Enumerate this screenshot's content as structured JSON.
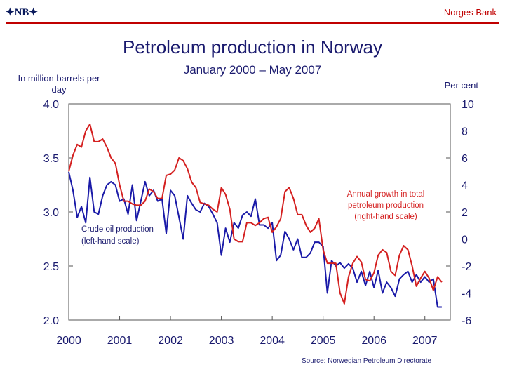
{
  "header": {
    "logo": "✦NB✦",
    "bank": "Norges Bank"
  },
  "colors": {
    "oil": "#1a1aa8",
    "petro": "#d42020",
    "axis": "#1a1a6e",
    "accent": "#c00000"
  },
  "chart_data": {
    "type": "line",
    "title": "Petroleum production in Norway",
    "subtitle": "January 2000 – May 2007",
    "left_axis_label": "In million barrels per day",
    "right_axis_label": "Per cent",
    "source": "Source: Norwegian Petroleum Directorate",
    "x_range": [
      2000,
      2007.5
    ],
    "x_ticks": [
      "2000",
      "2001",
      "2002",
      "2003",
      "2004",
      "2005",
      "2006",
      "2007"
    ],
    "left_axis": {
      "range": [
        2.0,
        4.0
      ],
      "ticks": [
        "2.0",
        "2.5",
        "3.0",
        "3.5",
        "4.0"
      ]
    },
    "right_axis": {
      "range": [
        -6,
        10
      ],
      "ticks": [
        "-6",
        "-4",
        "-2",
        "0",
        "2",
        "4",
        "6",
        "8",
        "10"
      ]
    },
    "series": [
      {
        "name": "Crude oil production",
        "label": [
          "Crude oil production",
          "(left-hand scale)"
        ],
        "axis": "left",
        "x": [
          2000.0,
          2000.083,
          2000.167,
          2000.25,
          2000.333,
          2000.417,
          2000.5,
          2000.583,
          2000.667,
          2000.75,
          2000.833,
          2000.917,
          2001.0,
          2001.083,
          2001.167,
          2001.25,
          2001.333,
          2001.417,
          2001.5,
          2001.583,
          2001.667,
          2001.75,
          2001.833,
          2001.917,
          2002.0,
          2002.083,
          2002.167,
          2002.25,
          2002.333,
          2002.417,
          2002.5,
          2002.583,
          2002.667,
          2002.75,
          2002.833,
          2002.917,
          2003.0,
          2003.083,
          2003.167,
          2003.25,
          2003.333,
          2003.417,
          2003.5,
          2003.583,
          2003.667,
          2003.75,
          2003.833,
          2003.917,
          2004.0,
          2004.083,
          2004.167,
          2004.25,
          2004.333,
          2004.417,
          2004.5,
          2004.583,
          2004.667,
          2004.75,
          2004.833,
          2004.917,
          2005.0,
          2005.083,
          2005.167,
          2005.25,
          2005.333,
          2005.417,
          2005.5,
          2005.583,
          2005.667,
          2005.75,
          2005.833,
          2005.917,
          2006.0,
          2006.083,
          2006.167,
          2006.25,
          2006.333,
          2006.417,
          2006.5,
          2006.583,
          2006.667,
          2006.75,
          2006.833,
          2006.917,
          2007.0,
          2007.083,
          2007.167,
          2007.25,
          2007.333
        ],
        "values": [
          3.37,
          3.2,
          2.95,
          3.05,
          2.9,
          3.32,
          3.0,
          2.98,
          3.15,
          3.25,
          3.28,
          3.25,
          3.1,
          3.12,
          2.98,
          3.25,
          2.92,
          3.1,
          3.28,
          3.15,
          3.2,
          3.1,
          3.12,
          2.8,
          3.2,
          3.15,
          2.95,
          2.75,
          3.15,
          3.08,
          3.02,
          3.0,
          3.08,
          3.05,
          2.98,
          2.9,
          2.6,
          2.85,
          2.72,
          2.9,
          2.85,
          2.97,
          3.0,
          2.96,
          3.12,
          2.88,
          2.88,
          2.85,
          2.9,
          2.55,
          2.6,
          2.82,
          2.75,
          2.65,
          2.75,
          2.58,
          2.58,
          2.62,
          2.72,
          2.72,
          2.68,
          2.25,
          2.55,
          2.5,
          2.53,
          2.48,
          2.52,
          2.48,
          2.35,
          2.45,
          2.32,
          2.45,
          2.3,
          2.46,
          2.25,
          2.35,
          2.3,
          2.22,
          2.38,
          2.42,
          2.45,
          2.35,
          2.42,
          2.35,
          2.4,
          2.35,
          2.38,
          2.12,
          2.12
        ]
      },
      {
        "name": "Annual growth in total petroleum production",
        "label": [
          "Annual growth in total",
          "petroleum production",
          "(right-hand scale)"
        ],
        "axis": "right",
        "x": [
          2000.0,
          2000.083,
          2000.167,
          2000.25,
          2000.333,
          2000.417,
          2000.5,
          2000.583,
          2000.667,
          2000.75,
          2000.833,
          2000.917,
          2001.0,
          2001.083,
          2001.167,
          2001.25,
          2001.333,
          2001.417,
          2001.5,
          2001.583,
          2001.667,
          2001.75,
          2001.833,
          2001.917,
          2002.0,
          2002.083,
          2002.167,
          2002.25,
          2002.333,
          2002.417,
          2002.5,
          2002.583,
          2002.667,
          2002.75,
          2002.833,
          2002.917,
          2003.0,
          2003.083,
          2003.167,
          2003.25,
          2003.333,
          2003.417,
          2003.5,
          2003.583,
          2003.667,
          2003.75,
          2003.833,
          2003.917,
          2004.0,
          2004.083,
          2004.167,
          2004.25,
          2004.333,
          2004.417,
          2004.5,
          2004.583,
          2004.667,
          2004.75,
          2004.833,
          2004.917,
          2005.0,
          2005.083,
          2005.167,
          2005.25,
          2005.333,
          2005.417,
          2005.5,
          2005.583,
          2005.667,
          2005.75,
          2005.833,
          2005.917,
          2006.0,
          2006.083,
          2006.167,
          2006.25,
          2006.333,
          2006.417,
          2006.5,
          2006.583,
          2006.667,
          2006.75,
          2006.833,
          2006.917,
          2007.0,
          2007.083,
          2007.167,
          2007.25,
          2007.333
        ],
        "values": [
          5.0,
          6.2,
          7.0,
          6.8,
          8.0,
          8.5,
          7.2,
          7.2,
          7.4,
          6.8,
          6.0,
          5.6,
          4.0,
          2.8,
          2.8,
          2.6,
          2.5,
          2.5,
          2.8,
          3.7,
          3.5,
          3.0,
          3.0,
          4.7,
          4.8,
          5.1,
          6.0,
          5.8,
          5.2,
          4.2,
          3.8,
          2.7,
          2.6,
          2.5,
          2.2,
          2.0,
          3.8,
          3.3,
          2.2,
          0.0,
          -0.2,
          -0.2,
          1.2,
          1.2,
          1.0,
          1.2,
          1.5,
          1.6,
          0.5,
          0.9,
          1.5,
          3.5,
          3.8,
          3.0,
          1.8,
          1.8,
          1.0,
          0.5,
          0.8,
          1.5,
          -0.8,
          -1.8,
          -1.8,
          -1.8,
          -4.0,
          -4.8,
          -2.8,
          -1.8,
          -1.3,
          -1.7,
          -3.0,
          -3.1,
          -2.5,
          -1.2,
          -0.8,
          -1.0,
          -2.4,
          -2.7,
          -1.2,
          -0.5,
          -0.8,
          -2.0,
          -3.5,
          -2.9,
          -2.4,
          -2.9,
          -3.8,
          -2.8,
          -3.2
        ]
      }
    ]
  }
}
